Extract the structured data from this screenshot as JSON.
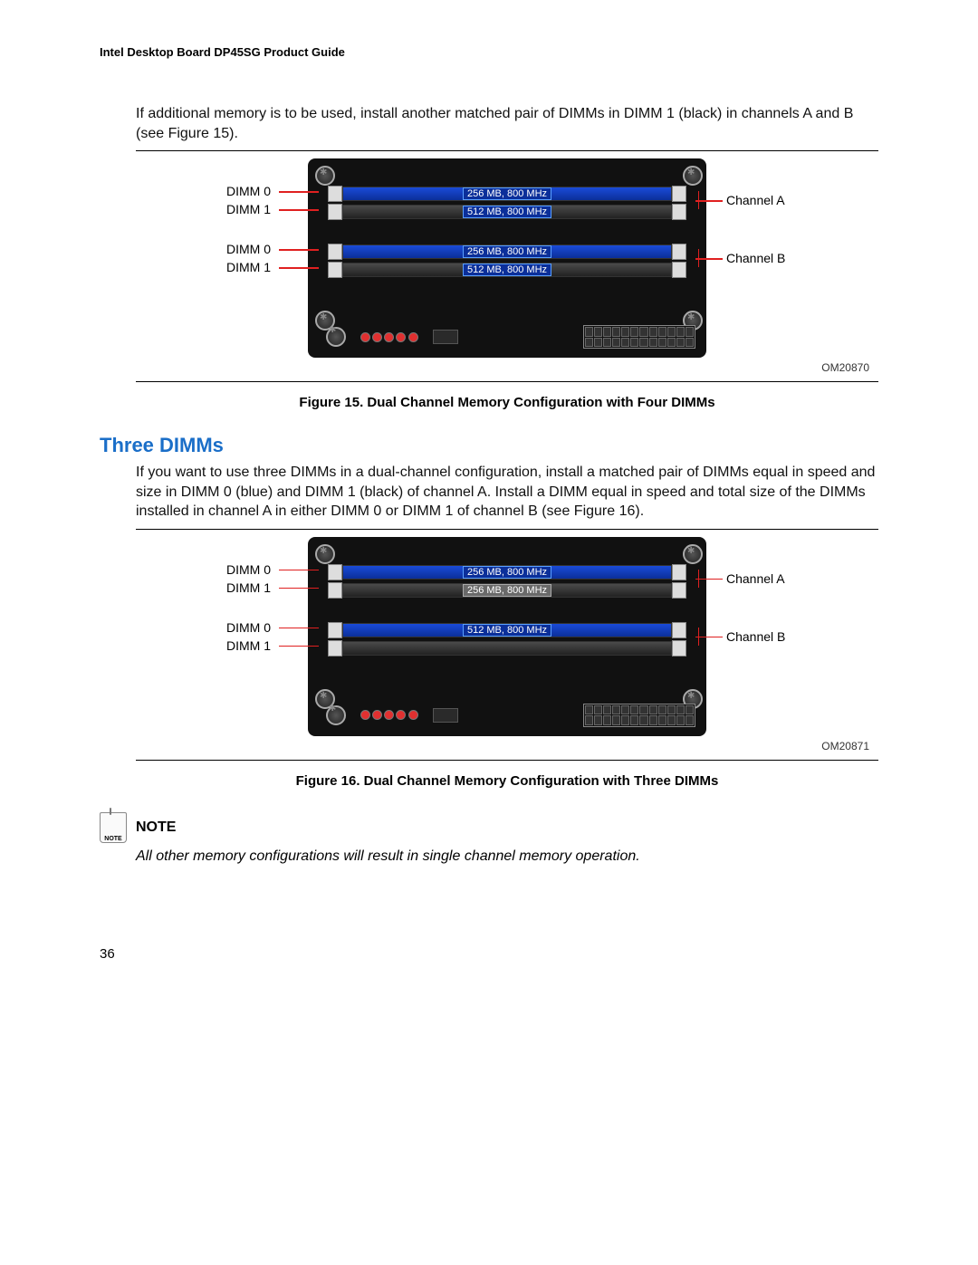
{
  "header": "Intel Desktop Board DP45SG Product Guide",
  "para1": "If additional memory is to be used, install another matched pair of DIMMs in DIMM 1 (black) in channels A and B (see Figure 15).",
  "fig15": {
    "om": "OM20870",
    "caption": "Figure 15.  Dual Channel Memory Configuration with Four DIMMs",
    "left": [
      "DIMM 0",
      "DIMM 1",
      "DIMM 0",
      "DIMM 1"
    ],
    "right": [
      "Channel A",
      "Channel B"
    ],
    "rows": [
      {
        "color": "blue",
        "label": "256 MB, 800 MHz",
        "filled": true
      },
      {
        "color": "black",
        "label": "512 MB, 800 MHz",
        "filled": true
      },
      {
        "color": "blue",
        "label": "256 MB, 800 MHz",
        "filled": true
      },
      {
        "color": "black",
        "label": "512 MB, 800 MHz",
        "filled": true
      }
    ]
  },
  "sectionTitle": "Three DIMMs",
  "para2": "If you want to use three DIMMs in a dual-channel configuration, install a matched pair of DIMMs equal in speed and size in DIMM 0 (blue) and DIMM 1 (black) of channel A. Install a DIMM equal in speed and total size of the DIMMs installed in channel A in either DIMM 0 or DIMM 1 of channel B (see Figure 16).",
  "fig16": {
    "om": "OM20871",
    "caption": "Figure 16.  Dual Channel Memory Configuration with Three DIMMs",
    "left": [
      "DIMM 0",
      "DIMM 1",
      "DIMM 0",
      "DIMM 1"
    ],
    "right": [
      "Channel A",
      "Channel B"
    ],
    "rows": [
      {
        "color": "blue",
        "label": "256 MB, 800 MHz",
        "filled": true
      },
      {
        "color": "black",
        "label": "256 MB, 800 MHz",
        "filled": true,
        "labelStyle": "grey"
      },
      {
        "color": "blue",
        "label": "512 MB, 800 MHz",
        "filled": true
      },
      {
        "color": "black",
        "label": "",
        "filled": false
      }
    ]
  },
  "noteHeading": "NOTE",
  "noteIconText": "NOTE",
  "noteBody": "All other memory configurations will result in single channel memory operation.",
  "pageNumber": "36",
  "colors": {
    "heading": "#1a6ec8",
    "slotBlue": "#0b2f9a",
    "slotBlack": "#3a3a3a",
    "redLine": "#e02020"
  }
}
